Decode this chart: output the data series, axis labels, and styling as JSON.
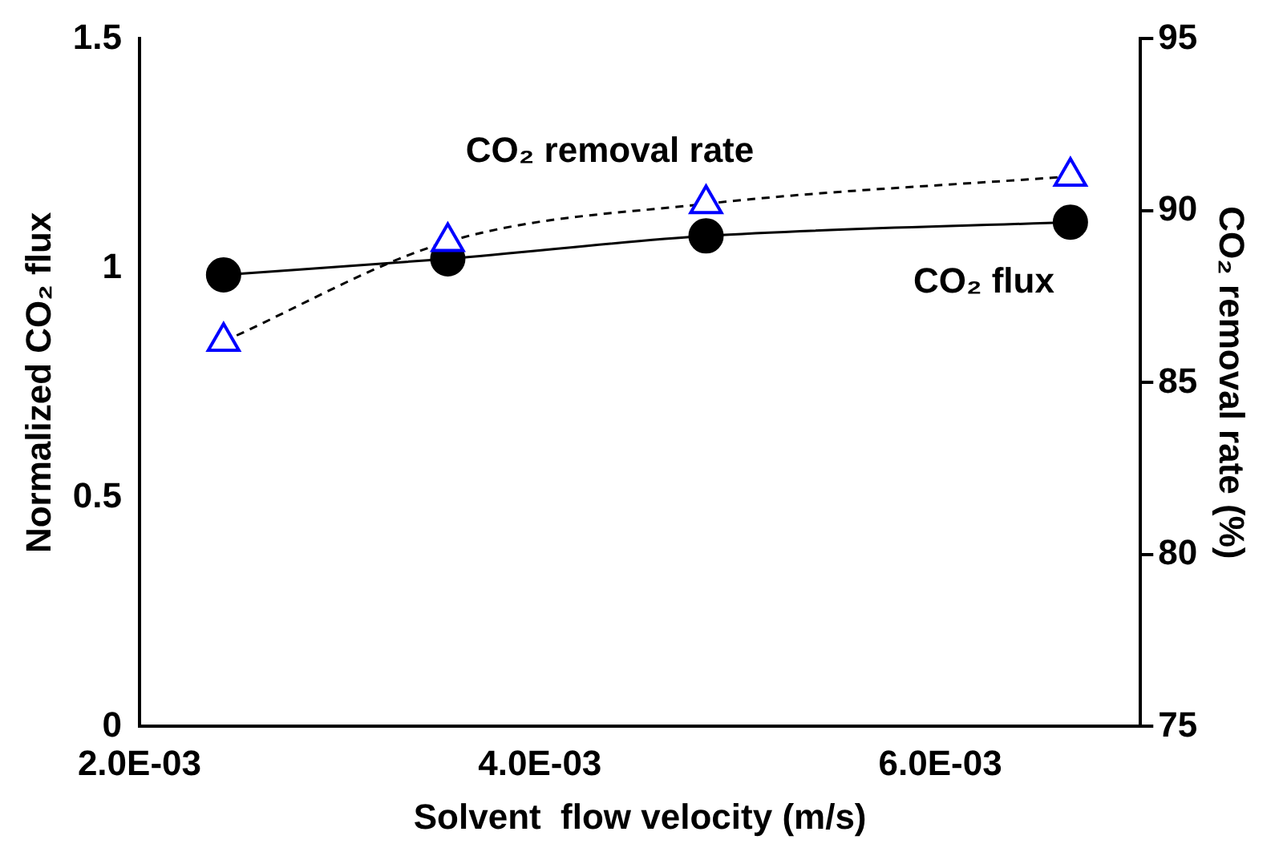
{
  "chart_data": {
    "type": "line",
    "xlabel": "Solvent  flow velocity (m/s)",
    "ylabel": "Normalized CO₂ flux",
    "y2label": "CO₂ removal rate (%)",
    "x": [
      0.00242,
      0.00354,
      0.00483,
      0.00665
    ],
    "series": [
      {
        "name": "CO₂ flux",
        "color": "#000000",
        "values": [
          0.985,
          1.02,
          1.07,
          1.1
        ],
        "marker": "circle",
        "line_style": "solid"
      },
      {
        "name": "CO₂ removal rate",
        "color": "#0000ff",
        "values": [
          86.2,
          89.1,
          90.2,
          91.0
        ],
        "axis": "y2",
        "marker": "triangle",
        "line_style": "dashed"
      }
    ],
    "xlim": [
      0.002,
      0.007
    ],
    "xticks": [
      {
        "value": 0.002,
        "label": "2.0E-03"
      },
      {
        "value": 0.004,
        "label": "4.0E-03"
      },
      {
        "value": 0.006,
        "label": "6.0E-03"
      }
    ],
    "ylim": [
      0,
      1.5
    ],
    "yticks": [
      0,
      0.5,
      1,
      1.5
    ],
    "y2lim": [
      75,
      95
    ],
    "y2ticks": [
      75,
      80,
      85,
      90,
      95
    ],
    "grid": false,
    "legend": false
  }
}
